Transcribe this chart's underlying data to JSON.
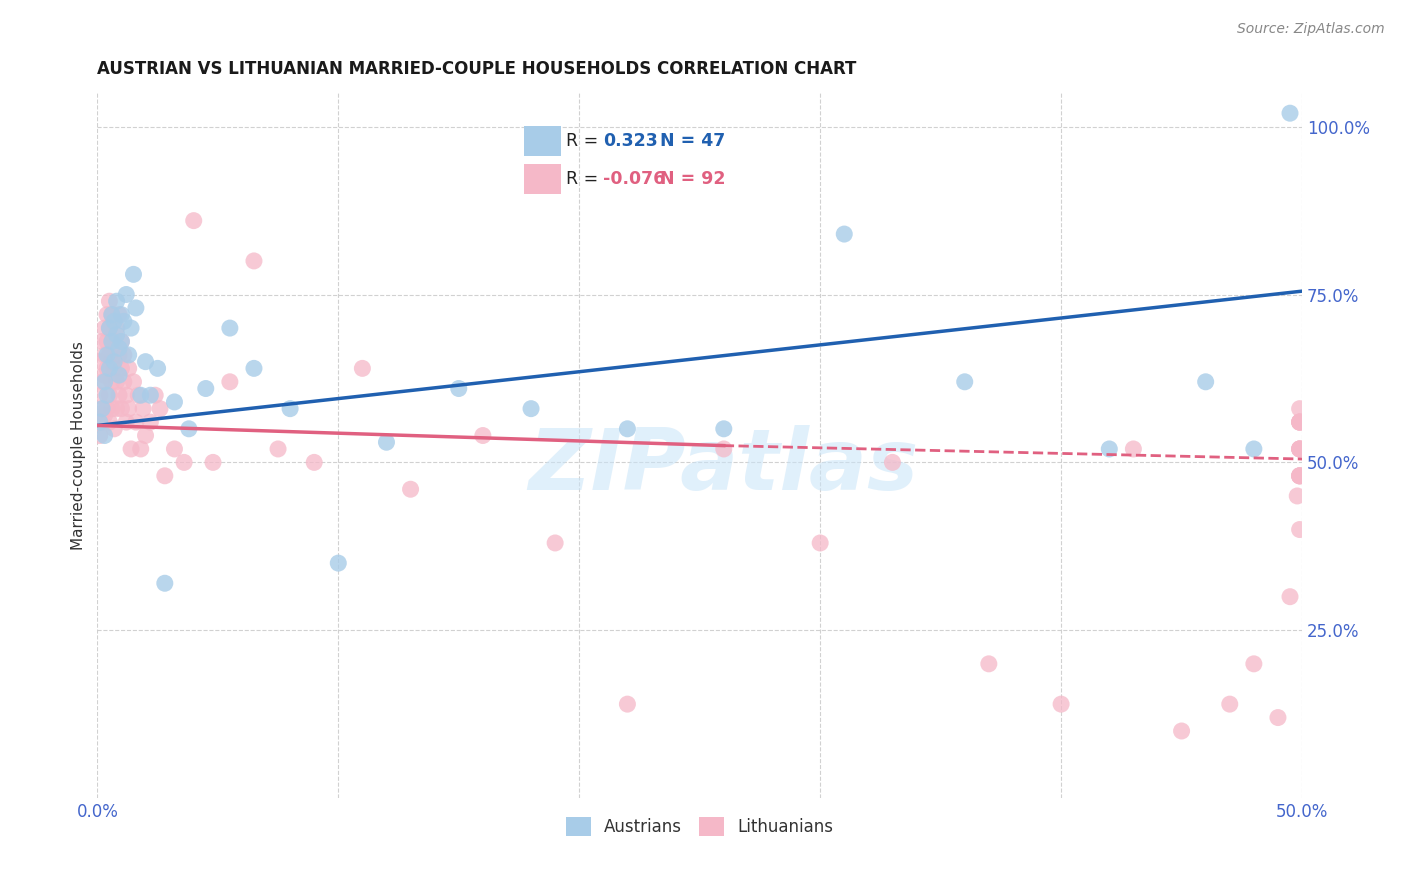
{
  "title": "AUSTRIAN VS LITHUANIAN MARRIED-COUPLE HOUSEHOLDS CORRELATION CHART",
  "source": "Source: ZipAtlas.com",
  "ylabel": "Married-couple Households",
  "label_austrians": "Austrians",
  "label_lithuanians": "Lithuanians",
  "xlim": [
    0.0,
    0.5
  ],
  "ylim": [
    0.0,
    1.05
  ],
  "R_austrians": 0.323,
  "N_austrians": 47,
  "R_lithuanians": -0.076,
  "N_lithuanians": 92,
  "color_austrians": "#A8CCE8",
  "color_lithuanians": "#F5B8C8",
  "line_color_austrians": "#2060B0",
  "line_color_lithuanians": "#E06080",
  "watermark": "ZIPatlas",
  "tick_label_color": "#4466CC",
  "background_color": "#FFFFFF",
  "grid_color": "#CCCCCC",
  "blue_line_x0": 0.0,
  "blue_line_y0": 0.555,
  "blue_line_x1": 0.5,
  "blue_line_y1": 0.755,
  "pink_line_x0": 0.0,
  "pink_line_y0": 0.555,
  "pink_line_x1_solid": 0.26,
  "pink_line_y1_solid": 0.525,
  "pink_line_x1_dash": 0.5,
  "pink_line_y1_dash": 0.505,
  "austrians_x": [
    0.001,
    0.002,
    0.003,
    0.003,
    0.004,
    0.004,
    0.005,
    0.005,
    0.006,
    0.006,
    0.007,
    0.007,
    0.008,
    0.008,
    0.009,
    0.009,
    0.01,
    0.01,
    0.011,
    0.012,
    0.013,
    0.014,
    0.015,
    0.016,
    0.018,
    0.02,
    0.022,
    0.025,
    0.028,
    0.032,
    0.038,
    0.045,
    0.055,
    0.065,
    0.08,
    0.1,
    0.12,
    0.15,
    0.18,
    0.22,
    0.26,
    0.31,
    0.36,
    0.42,
    0.46,
    0.48,
    0.495
  ],
  "austrians_y": [
    0.56,
    0.58,
    0.54,
    0.62,
    0.6,
    0.66,
    0.64,
    0.7,
    0.68,
    0.72,
    0.65,
    0.71,
    0.69,
    0.74,
    0.67,
    0.63,
    0.72,
    0.68,
    0.71,
    0.75,
    0.66,
    0.7,
    0.78,
    0.73,
    0.6,
    0.65,
    0.6,
    0.64,
    0.32,
    0.59,
    0.55,
    0.61,
    0.7,
    0.64,
    0.58,
    0.35,
    0.53,
    0.61,
    0.58,
    0.55,
    0.55,
    0.84,
    0.62,
    0.52,
    0.62,
    0.52,
    1.02
  ],
  "lithuanians_x": [
    0.001,
    0.001,
    0.001,
    0.002,
    0.002,
    0.002,
    0.002,
    0.003,
    0.003,
    0.003,
    0.003,
    0.004,
    0.004,
    0.004,
    0.004,
    0.005,
    0.005,
    0.005,
    0.005,
    0.005,
    0.006,
    0.006,
    0.006,
    0.006,
    0.007,
    0.007,
    0.007,
    0.008,
    0.008,
    0.008,
    0.009,
    0.009,
    0.009,
    0.01,
    0.01,
    0.01,
    0.011,
    0.011,
    0.012,
    0.012,
    0.013,
    0.013,
    0.014,
    0.015,
    0.016,
    0.017,
    0.018,
    0.019,
    0.02,
    0.022,
    0.024,
    0.026,
    0.028,
    0.032,
    0.036,
    0.04,
    0.048,
    0.055,
    0.065,
    0.075,
    0.09,
    0.11,
    0.13,
    0.16,
    0.19,
    0.22,
    0.26,
    0.3,
    0.33,
    0.37,
    0.4,
    0.43,
    0.45,
    0.47,
    0.48,
    0.49,
    0.495,
    0.498,
    0.499,
    0.499,
    0.499,
    0.499,
    0.499,
    0.499,
    0.499,
    0.499,
    0.499,
    0.499,
    0.499,
    0.499,
    0.499,
    0.499
  ],
  "lithuanians_y": [
    0.54,
    0.6,
    0.65,
    0.56,
    0.62,
    0.68,
    0.58,
    0.63,
    0.7,
    0.57,
    0.66,
    0.64,
    0.72,
    0.58,
    0.68,
    0.6,
    0.66,
    0.74,
    0.56,
    0.7,
    0.65,
    0.72,
    0.58,
    0.62,
    0.68,
    0.64,
    0.55,
    0.7,
    0.62,
    0.58,
    0.66,
    0.6,
    0.72,
    0.64,
    0.58,
    0.68,
    0.62,
    0.66,
    0.6,
    0.56,
    0.64,
    0.58,
    0.52,
    0.62,
    0.56,
    0.6,
    0.52,
    0.58,
    0.54,
    0.56,
    0.6,
    0.58,
    0.48,
    0.52,
    0.5,
    0.86,
    0.5,
    0.62,
    0.8,
    0.52,
    0.5,
    0.64,
    0.46,
    0.54,
    0.38,
    0.14,
    0.52,
    0.38,
    0.5,
    0.2,
    0.14,
    0.52,
    0.1,
    0.14,
    0.2,
    0.12,
    0.3,
    0.45,
    0.58,
    0.52,
    0.4,
    0.56,
    0.48,
    0.52,
    0.56,
    0.48,
    0.52,
    0.56,
    0.48,
    0.52,
    0.56,
    0.48
  ]
}
